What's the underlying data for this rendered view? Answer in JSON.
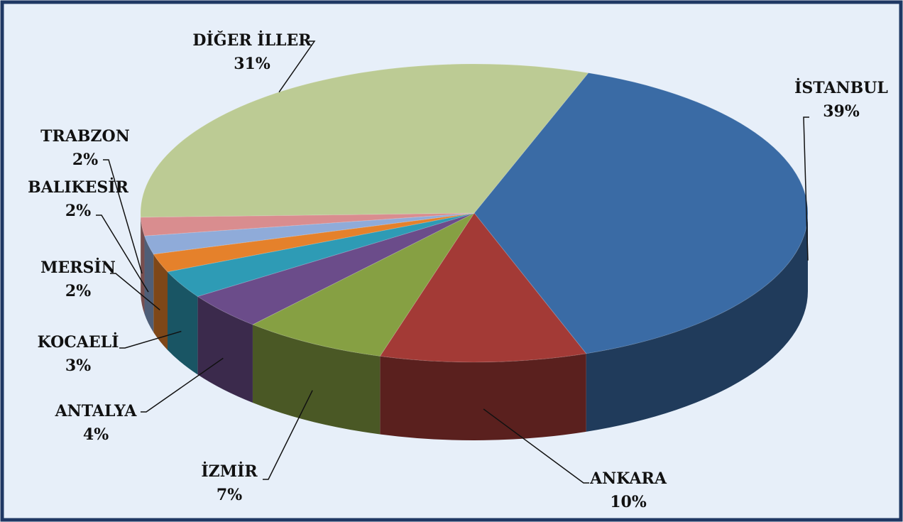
{
  "chart_data": {
    "type": "pie",
    "categories": [
      "İSTANBUL",
      "ANKARA",
      "İZMİR",
      "ANTALYA",
      "KOCAELİ",
      "MERSİN",
      "BALIKESİR",
      "TRABZON",
      "DİĞER İLLER"
    ],
    "values": [
      39,
      10,
      7,
      4,
      3,
      2,
      2,
      2,
      31
    ],
    "value_labels": [
      "39%",
      "10%",
      "7%",
      "4%",
      "3%",
      "2%",
      "2%",
      "2%",
      "31%"
    ],
    "colors": [
      "#3a6ba5",
      "#a33a36",
      "#86a043",
      "#6b4c8a",
      "#2e9bb5",
      "#e5812b",
      "#8fabd9",
      "#d98d8f",
      "#bccb94"
    ]
  }
}
